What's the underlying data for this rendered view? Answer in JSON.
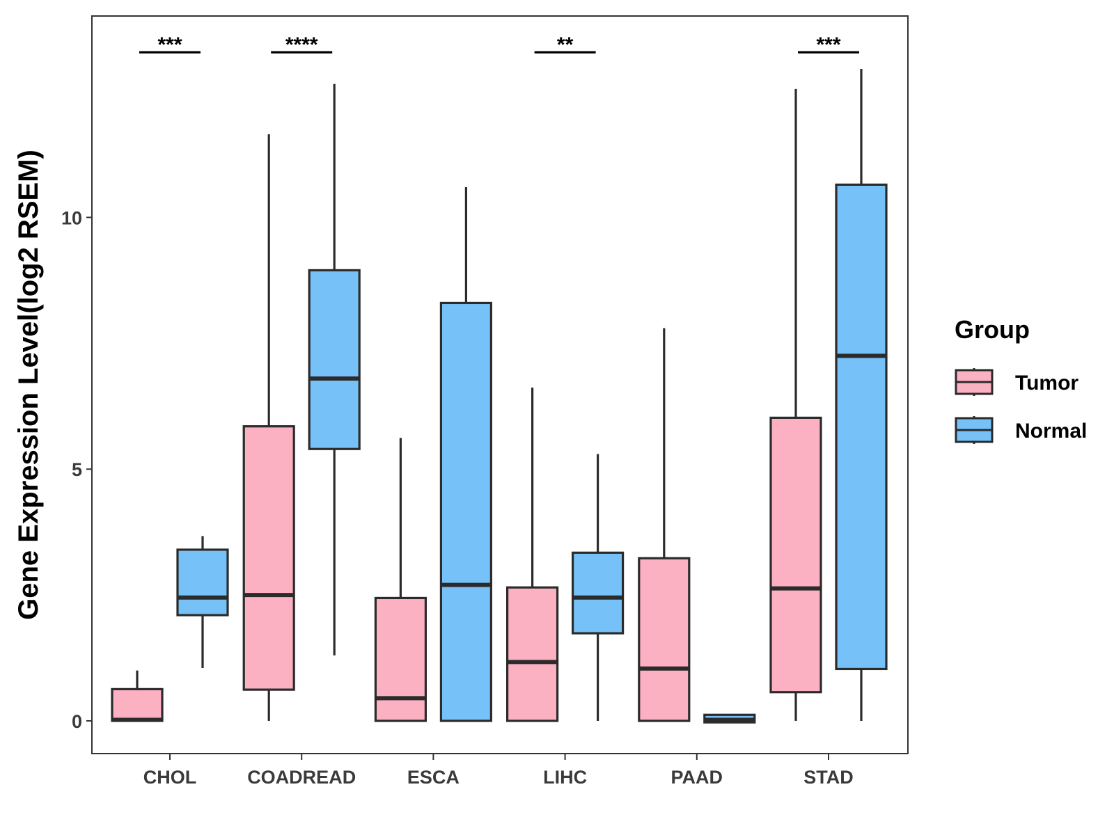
{
  "chart_data": {
    "type": "boxplot",
    "ylabel": "Gene Expression Level(log2 RSEM)",
    "xlabel": "",
    "ylim": [
      -0.65,
      14.0
    ],
    "yticks": [
      0,
      5,
      10
    ],
    "categories": [
      "CHOL",
      "COADREAD",
      "ESCA",
      "LIHC",
      "PAAD",
      "STAD"
    ],
    "legend": {
      "title": "Group",
      "position": "right",
      "entries": [
        {
          "name": "Tumor",
          "color": "#FCB1C3"
        },
        {
          "name": "Normal",
          "color": "#76C1F7"
        }
      ]
    },
    "series": [
      {
        "name": "Tumor",
        "color": "#FCB1C3",
        "boxes": [
          {
            "category": "CHOL",
            "min": 0.0,
            "q1": 0.0,
            "median": 0.02,
            "q3": 0.63,
            "max": 1.0
          },
          {
            "category": "COADREAD",
            "min": 0.0,
            "q1": 0.62,
            "median": 2.5,
            "q3": 5.85,
            "max": 11.65
          },
          {
            "category": "ESCA",
            "min": 0.0,
            "q1": 0.0,
            "median": 0.45,
            "q3": 2.44,
            "max": 5.62
          },
          {
            "category": "LIHC",
            "min": 0.0,
            "q1": 0.0,
            "median": 1.17,
            "q3": 2.65,
            "max": 6.62
          },
          {
            "category": "PAAD",
            "min": 0.0,
            "q1": 0.0,
            "median": 1.04,
            "q3": 3.23,
            "max": 7.8
          },
          {
            "category": "STAD",
            "min": 0.0,
            "q1": 0.57,
            "median": 2.63,
            "q3": 6.02,
            "max": 12.55
          }
        ]
      },
      {
        "name": "Normal",
        "color": "#76C1F7",
        "boxes": [
          {
            "category": "CHOL",
            "min": 1.05,
            "q1": 2.1,
            "median": 2.45,
            "q3": 3.4,
            "max": 3.67
          },
          {
            "category": "COADREAD",
            "min": 1.3,
            "q1": 5.4,
            "median": 6.8,
            "q3": 8.95,
            "max": 12.65
          },
          {
            "category": "ESCA",
            "min": 0.0,
            "q1": 0.0,
            "median": 2.7,
            "q3": 8.3,
            "max": 10.6
          },
          {
            "category": "LIHC",
            "min": 0.0,
            "q1": 1.74,
            "median": 2.45,
            "q3": 3.34,
            "max": 5.3
          },
          {
            "category": "PAAD",
            "min": -0.03,
            "q1": -0.03,
            "median": 0.02,
            "q3": 0.12,
            "max": 0.12
          },
          {
            "category": "STAD",
            "min": 0.0,
            "q1": 1.03,
            "median": 7.25,
            "q3": 10.65,
            "max": 12.95
          }
        ]
      }
    ],
    "significance": [
      {
        "category": "CHOL",
        "label": "***"
      },
      {
        "category": "COADREAD",
        "label": "****"
      },
      {
        "category": "LIHC",
        "label": "**"
      },
      {
        "category": "STAD",
        "label": "***"
      }
    ],
    "significance_bar_y": 13.28,
    "grid": false
  }
}
